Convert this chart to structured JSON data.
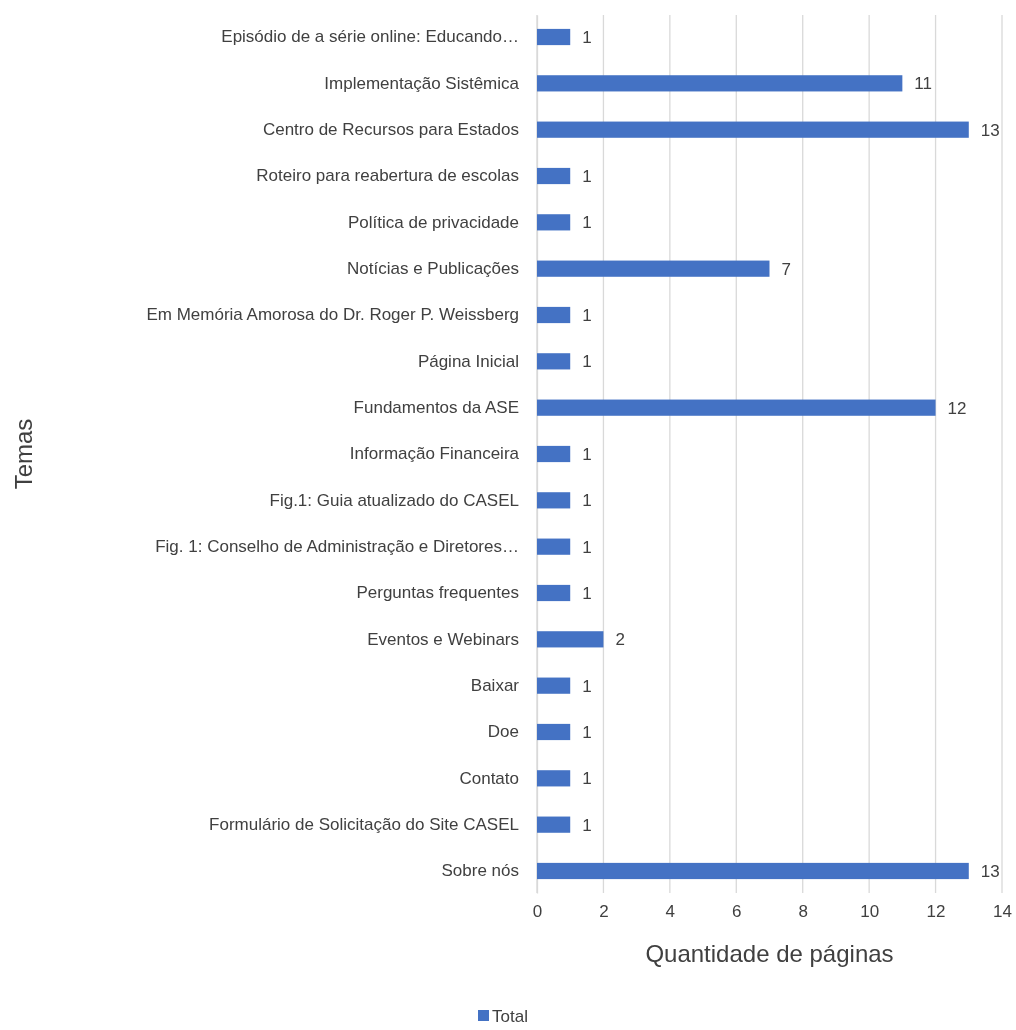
{
  "chart_data": {
    "type": "bar",
    "orientation": "horizontal",
    "xlabel": "Quantidade de páginas",
    "ylabel": "Temas",
    "categories": [
      "Episódio de a série online: Educando…",
      "Implementação Sistêmica",
      "Centro de Recursos para Estados",
      "Roteiro para reabertura de escolas",
      "Política de privacidade",
      "Notícias e Publicações",
      "Em Memória Amorosa do Dr. Roger P. Weissberg",
      "Página Inicial",
      "Fundamentos da ASE",
      "Informação Financeira",
      "Fig.1: Guia atualizado do CASEL",
      "Fig. 1: Conselho de Administração e Diretores…",
      "Perguntas frequentes",
      "Eventos e Webinars",
      "Baixar",
      "Doe",
      "Contato",
      "Formulário de Solicitação do Site CASEL",
      "Sobre nós"
    ],
    "series": [
      {
        "name": "Total",
        "color": "#4472c4",
        "values": [
          1,
          11,
          13,
          1,
          1,
          7,
          1,
          1,
          12,
          1,
          1,
          1,
          1,
          2,
          1,
          1,
          1,
          1,
          13
        ]
      }
    ],
    "xlim": [
      0,
      14
    ],
    "xticks": [
      0,
      2,
      4,
      6,
      8,
      10,
      12,
      14
    ],
    "grid": "x",
    "legend": "bottom",
    "data_labels": true
  }
}
